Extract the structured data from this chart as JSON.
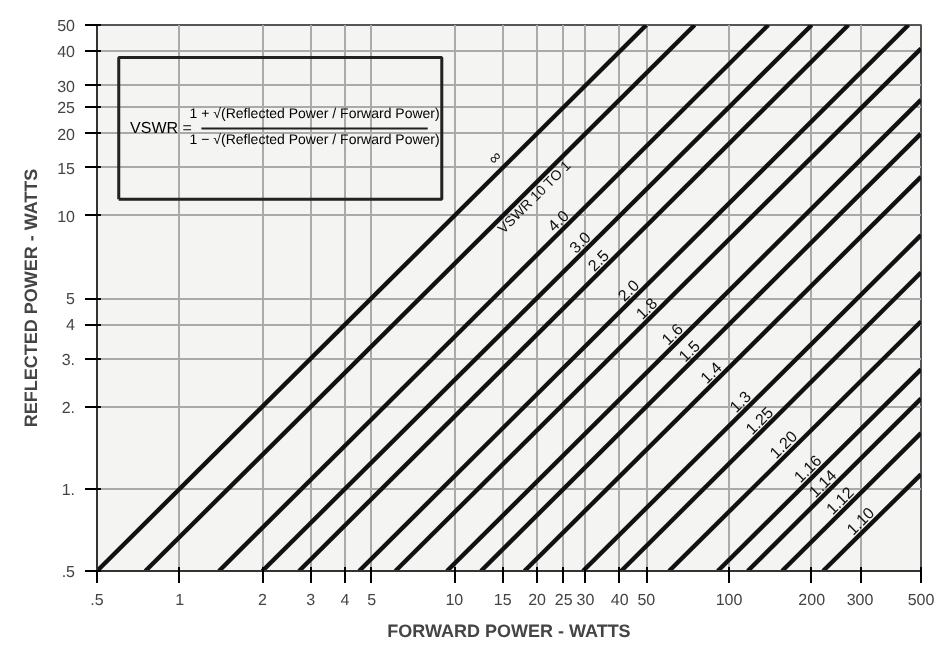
{
  "chart_data": {
    "type": "line",
    "xlabel": "FORWARD POWER - WATTS",
    "ylabel": "REFLECTED POWER - WATTS",
    "log": "xy",
    "grid": true,
    "legend": false,
    "marker": "none",
    "line_style": "solid",
    "xlim": [
      0.5,
      500
    ],
    "ylim": [
      0.5,
      50
    ],
    "xticks": [
      {
        "value": 0.5,
        "label": ".5"
      },
      1,
      2,
      3,
      4,
      5,
      10,
      15,
      20,
      25,
      30,
      40,
      50,
      100,
      200,
      300,
      500
    ],
    "yticks": [
      {
        "value": 0.5,
        "label": ".5"
      },
      {
        "value": 1,
        "label": "1."
      },
      {
        "value": 2,
        "label": "2."
      },
      {
        "value": 3,
        "label": "3."
      },
      4,
      5,
      10,
      15,
      20,
      25,
      30,
      40,
      50
    ],
    "annotations": [
      "VSWR =",
      "1 + √(Reflected Power / Forward Power)",
      "1 − √(Reflected Power / Forward Power)"
    ],
    "series": [
      {
        "name": "∞",
        "color": "#111111",
        "x": [
          0.5,
          50
        ],
        "values": [
          0.5,
          50
        ]
      },
      {
        "name": "VSWR 10 TO 1",
        "color": "#111111",
        "x": [
          0.75,
          75
        ],
        "values": [
          0.5,
          50
        ]
      },
      {
        "name": "4.0",
        "color": "#111111",
        "x": [
          1.39,
          139
        ],
        "values": [
          0.5,
          50
        ]
      },
      {
        "name": "3.0",
        "color": "#111111",
        "x": [
          2,
          200
        ],
        "values": [
          0.5,
          50
        ]
      },
      {
        "name": "2.5",
        "color": "#111111",
        "x": [
          2.72,
          272
        ],
        "values": [
          0.5,
          50
        ]
      },
      {
        "name": "2.0",
        "color": "#111111",
        "x": [
          4.5,
          450
        ],
        "values": [
          0.5,
          50
        ]
      },
      {
        "name": "1.8",
        "color": "#111111",
        "x": [
          6.1,
          500
        ],
        "values": [
          0.5,
          41
        ]
      },
      {
        "name": "1.6",
        "color": "#111111",
        "x": [
          9.4,
          500
        ],
        "values": [
          0.5,
          26.6
        ]
      },
      {
        "name": "1.5",
        "color": "#111111",
        "x": [
          12.5,
          500
        ],
        "values": [
          0.5,
          20
        ]
      },
      {
        "name": "1.4",
        "color": "#111111",
        "x": [
          18,
          500
        ],
        "values": [
          0.5,
          13.9
        ]
      },
      {
        "name": "1.3",
        "color": "#111111",
        "x": [
          29.4,
          500
        ],
        "values": [
          0.5,
          8.5
        ]
      },
      {
        "name": "1.25",
        "color": "#111111",
        "x": [
          40.5,
          500
        ],
        "values": [
          0.5,
          6.2
        ]
      },
      {
        "name": "1.20",
        "color": "#111111",
        "x": [
          60.5,
          500
        ],
        "values": [
          0.5,
          4.1
        ]
      },
      {
        "name": "1.16",
        "color": "#111111",
        "x": [
          91,
          500
        ],
        "values": [
          0.5,
          2.74
        ]
      },
      {
        "name": "1.14",
        "color": "#111111",
        "x": [
          117,
          500
        ],
        "values": [
          0.5,
          2.14
        ]
      },
      {
        "name": "1.12",
        "color": "#111111",
        "x": [
          156,
          500
        ],
        "values": [
          0.5,
          1.6
        ]
      },
      {
        "name": "1.10",
        "color": "#111111",
        "x": [
          220,
          500
        ],
        "values": [
          0.5,
          1.13
        ]
      }
    ]
  }
}
